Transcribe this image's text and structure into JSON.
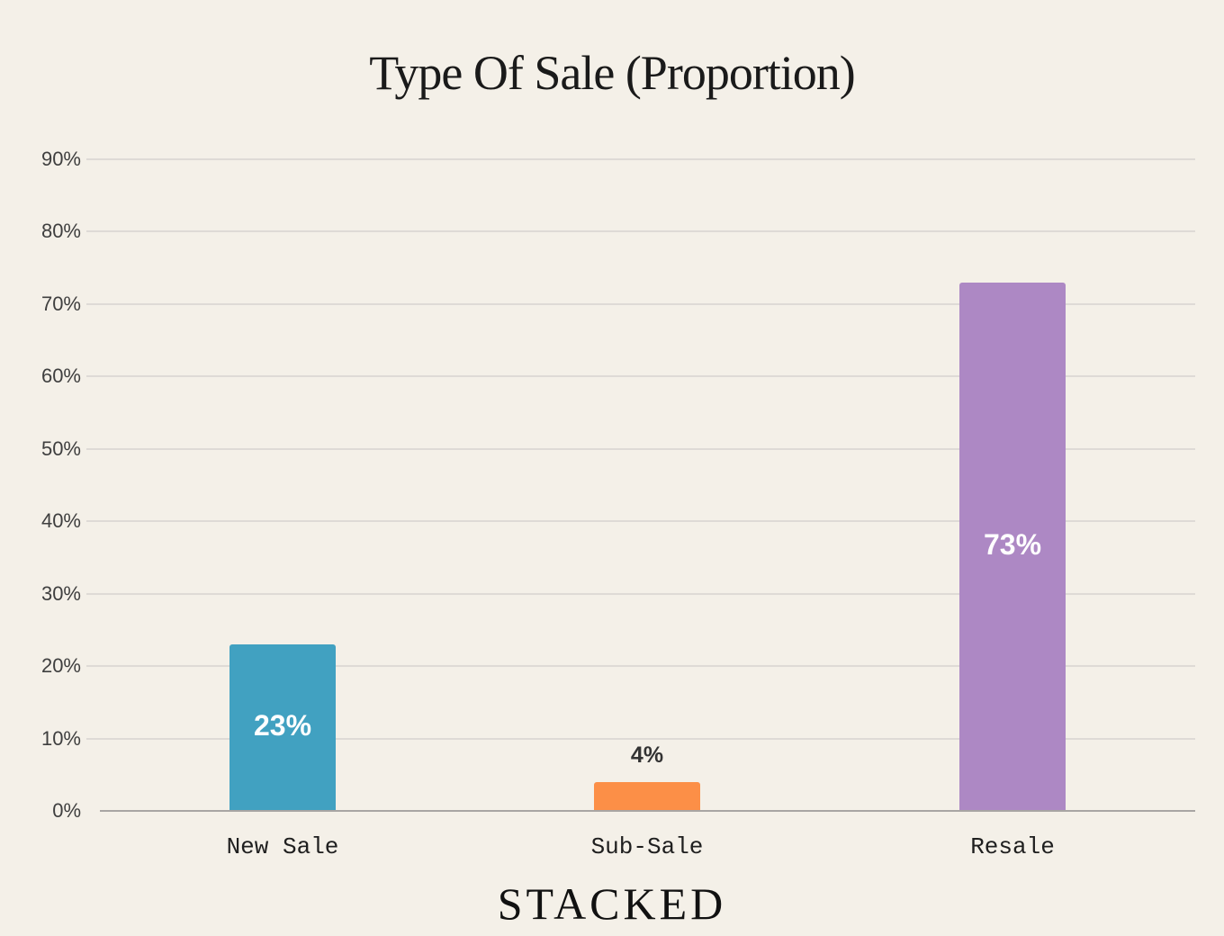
{
  "title": "Type Of Sale (Proportion)",
  "footer": {
    "logo_text": "STACKED"
  },
  "y_ticks": [
    "0%",
    "10%",
    "20%",
    "30%",
    "40%",
    "50%",
    "60%",
    "70%",
    "80%",
    "90%"
  ],
  "bars": [
    {
      "category": "New Sale",
      "value": 23,
      "label": "23%",
      "color": "#41a1c1",
      "label_position": "inside"
    },
    {
      "category": "Sub-Sale",
      "value": 4,
      "label": "4%",
      "color": "#fc8f47",
      "label_position": "outside"
    },
    {
      "category": "Resale",
      "value": 73,
      "label": "73%",
      "color": "#ad88c4",
      "label_position": "inside"
    }
  ],
  "chart_data": {
    "type": "bar",
    "title": "Type Of Sale (Proportion)",
    "categories": [
      "New Sale",
      "Sub-Sale",
      "Resale"
    ],
    "values": [
      23,
      4,
      73
    ],
    "data_labels": [
      "23%",
      "4%",
      "73%"
    ],
    "colors": [
      "#41a1c1",
      "#fc8f47",
      "#ad88c4"
    ],
    "xlabel": "",
    "ylabel": "",
    "ylim": [
      0,
      90
    ],
    "y_tick_labels": [
      "0%",
      "10%",
      "20%",
      "30%",
      "40%",
      "50%",
      "60%",
      "70%",
      "80%",
      "90%"
    ],
    "grid": true,
    "legend": "none"
  }
}
